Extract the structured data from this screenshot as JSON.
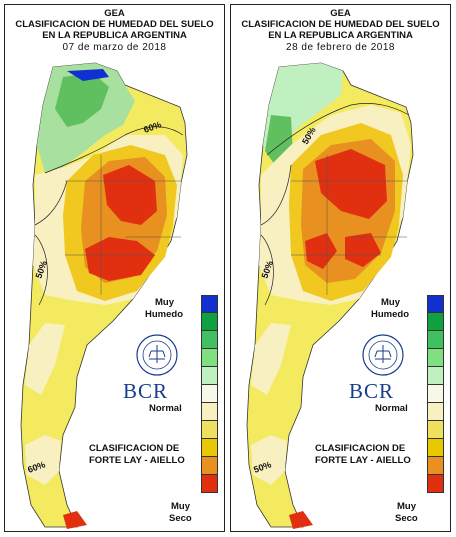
{
  "panels": [
    {
      "title_line1": "GEA",
      "title_line2": "CLASIFICACION DE HUMEDAD DEL SUELO",
      "title_line3": "EN LA REPUBLICA ARGENTINA",
      "date": "07 de marzo de 2018",
      "contour_labels": [
        "60%",
        "50%",
        "60%"
      ]
    },
    {
      "title_line1": "GEA",
      "title_line2": "CLASIFICACION DE HUMEDAD DEL SUELO",
      "title_line3": "EN LA REPUBLICA ARGENTINA",
      "date": "28 de febrero de 2018",
      "contour_labels": [
        "50%",
        "50%",
        "50%"
      ]
    }
  ],
  "legend": {
    "label_top_1": "Muy",
    "label_top_2": "Humedo",
    "label_mid": "Normal",
    "label_bottom_1": "Muy",
    "label_bottom_2": "Seco",
    "scale_colors": [
      "#1030d0",
      "#10a040",
      "#40c060",
      "#80e080",
      "#c0f0c0",
      "#f8f8e8",
      "#f8f0c0",
      "#f0e060",
      "#e8c800",
      "#e89020",
      "#e03010"
    ]
  },
  "branding": {
    "logo": "BCR",
    "seal_text": "BOLSA DE COMERCIO DE ROSARIO",
    "classification_line1": "CLASIFICACION DE",
    "classification_line2": "FORTE LAY - AIELLO"
  }
}
